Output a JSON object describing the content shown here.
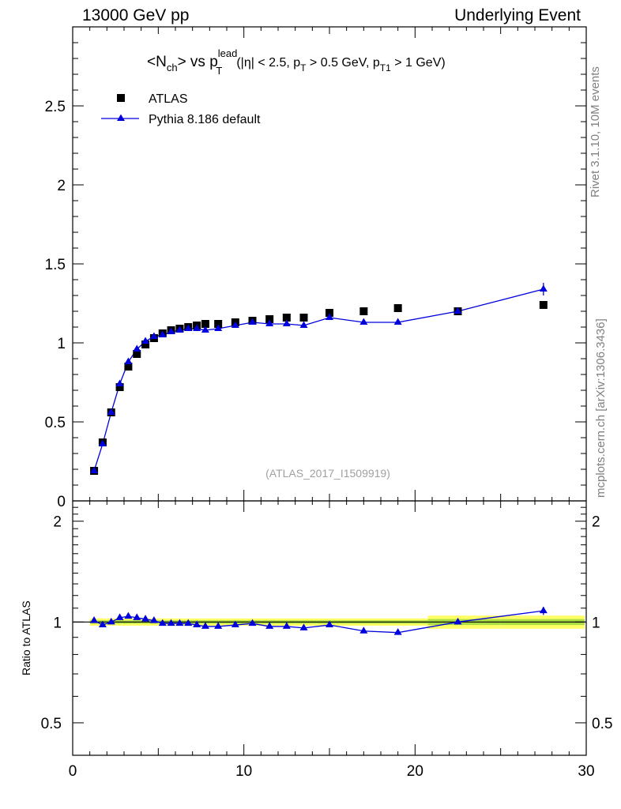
{
  "header": {
    "left": "13000 GeV pp",
    "right": "Underlying Event"
  },
  "side_labels": {
    "rivet": "Rivet 3.1.10,  10M events",
    "source": "mcplots.cern.ch [arXiv:1306.3436]"
  },
  "chart_data": [
    {
      "type": "scatter",
      "panel": "main",
      "title": {
        "main": "<N",
        "main_sub": "ch",
        "mid": "> vs p",
        "mid_sup": "lead",
        "mid_sub": "T",
        "paren_a": "(|η| < 2.5, p",
        "paren_sub_a": "T",
        "paren_b": " > 0.5 GeV, p",
        "paren_sub_b": "T1",
        "paren_c": " > 1 GeV)"
      },
      "watermark": "(ATLAS_2017_I1509919)",
      "xlim": [
        0,
        30
      ],
      "ylim": [
        0,
        3.0
      ],
      "yticks": [
        0.5,
        1,
        1.5,
        2,
        2.5
      ],
      "ytick_labels": [
        "0.5",
        "1",
        "1.5",
        "2",
        "2.5"
      ],
      "ytick_zero_label": "0",
      "legend": {
        "placement": "top-left",
        "entries": [
          "ATLAS",
          "Pythia 8.186 default"
        ]
      },
      "series": [
        {
          "name": "ATLAS",
          "marker": "square",
          "color": "#000000",
          "x": [
            1.25,
            1.75,
            2.25,
            2.75,
            3.25,
            3.75,
            4.25,
            4.75,
            5.25,
            5.75,
            6.25,
            6.75,
            7.25,
            7.75,
            8.5,
            9.5,
            10.5,
            11.5,
            12.5,
            13.5,
            15.0,
            17.0,
            19.0,
            22.5,
            27.5
          ],
          "y": [
            0.19,
            0.37,
            0.56,
            0.72,
            0.85,
            0.93,
            0.99,
            1.03,
            1.06,
            1.08,
            1.09,
            1.1,
            1.11,
            1.12,
            1.12,
            1.13,
            1.14,
            1.15,
            1.16,
            1.16,
            1.19,
            1.2,
            1.22,
            1.2,
            1.24
          ]
        },
        {
          "name": "Pythia 8.186 default",
          "marker": "triangle",
          "color": "#0000dd",
          "x": [
            1.25,
            1.75,
            2.25,
            2.75,
            3.25,
            3.75,
            4.25,
            4.75,
            5.25,
            5.75,
            6.25,
            6.75,
            7.25,
            7.75,
            8.5,
            9.5,
            10.5,
            11.5,
            12.5,
            13.5,
            15.0,
            17.0,
            19.0,
            22.5,
            27.5
          ],
          "y": [
            0.19,
            0.36,
            0.56,
            0.74,
            0.88,
            0.96,
            1.01,
            1.04,
            1.05,
            1.07,
            1.08,
            1.09,
            1.09,
            1.08,
            1.09,
            1.11,
            1.13,
            1.12,
            1.12,
            1.11,
            1.16,
            1.13,
            1.13,
            1.2,
            1.34
          ]
        }
      ]
    },
    {
      "type": "scatter",
      "panel": "ratio",
      "ylabel": "Ratio to ATLAS",
      "xlim": [
        0,
        30
      ],
      "ylim": [
        0.4,
        2.3
      ],
      "log_y": true,
      "xticks": [
        0,
        10,
        20,
        30
      ],
      "xtick_labels": [
        "0",
        "10",
        "20",
        "30"
      ],
      "yticks": [
        0.5,
        1,
        2
      ],
      "ytick_labels": [
        "0.5",
        "1",
        "2"
      ],
      "band_color": "#ffff66",
      "band_inner_color": "#aadd44",
      "series": [
        {
          "name": "Pythia 8.186 default",
          "x": [
            1.25,
            1.75,
            2.25,
            2.75,
            3.25,
            3.75,
            4.25,
            4.75,
            5.25,
            5.75,
            6.25,
            6.75,
            7.25,
            7.75,
            8.5,
            9.5,
            10.5,
            11.5,
            12.5,
            13.5,
            15.0,
            17.0,
            19.0,
            22.5,
            27.5
          ],
          "y": [
            1.01,
            0.98,
            1.0,
            1.03,
            1.04,
            1.03,
            1.02,
            1.01,
            0.99,
            0.99,
            0.99,
            0.99,
            0.98,
            0.97,
            0.97,
            0.98,
            0.99,
            0.97,
            0.97,
            0.96,
            0.98,
            0.94,
            0.93,
            1.0,
            1.08
          ]
        }
      ]
    }
  ]
}
